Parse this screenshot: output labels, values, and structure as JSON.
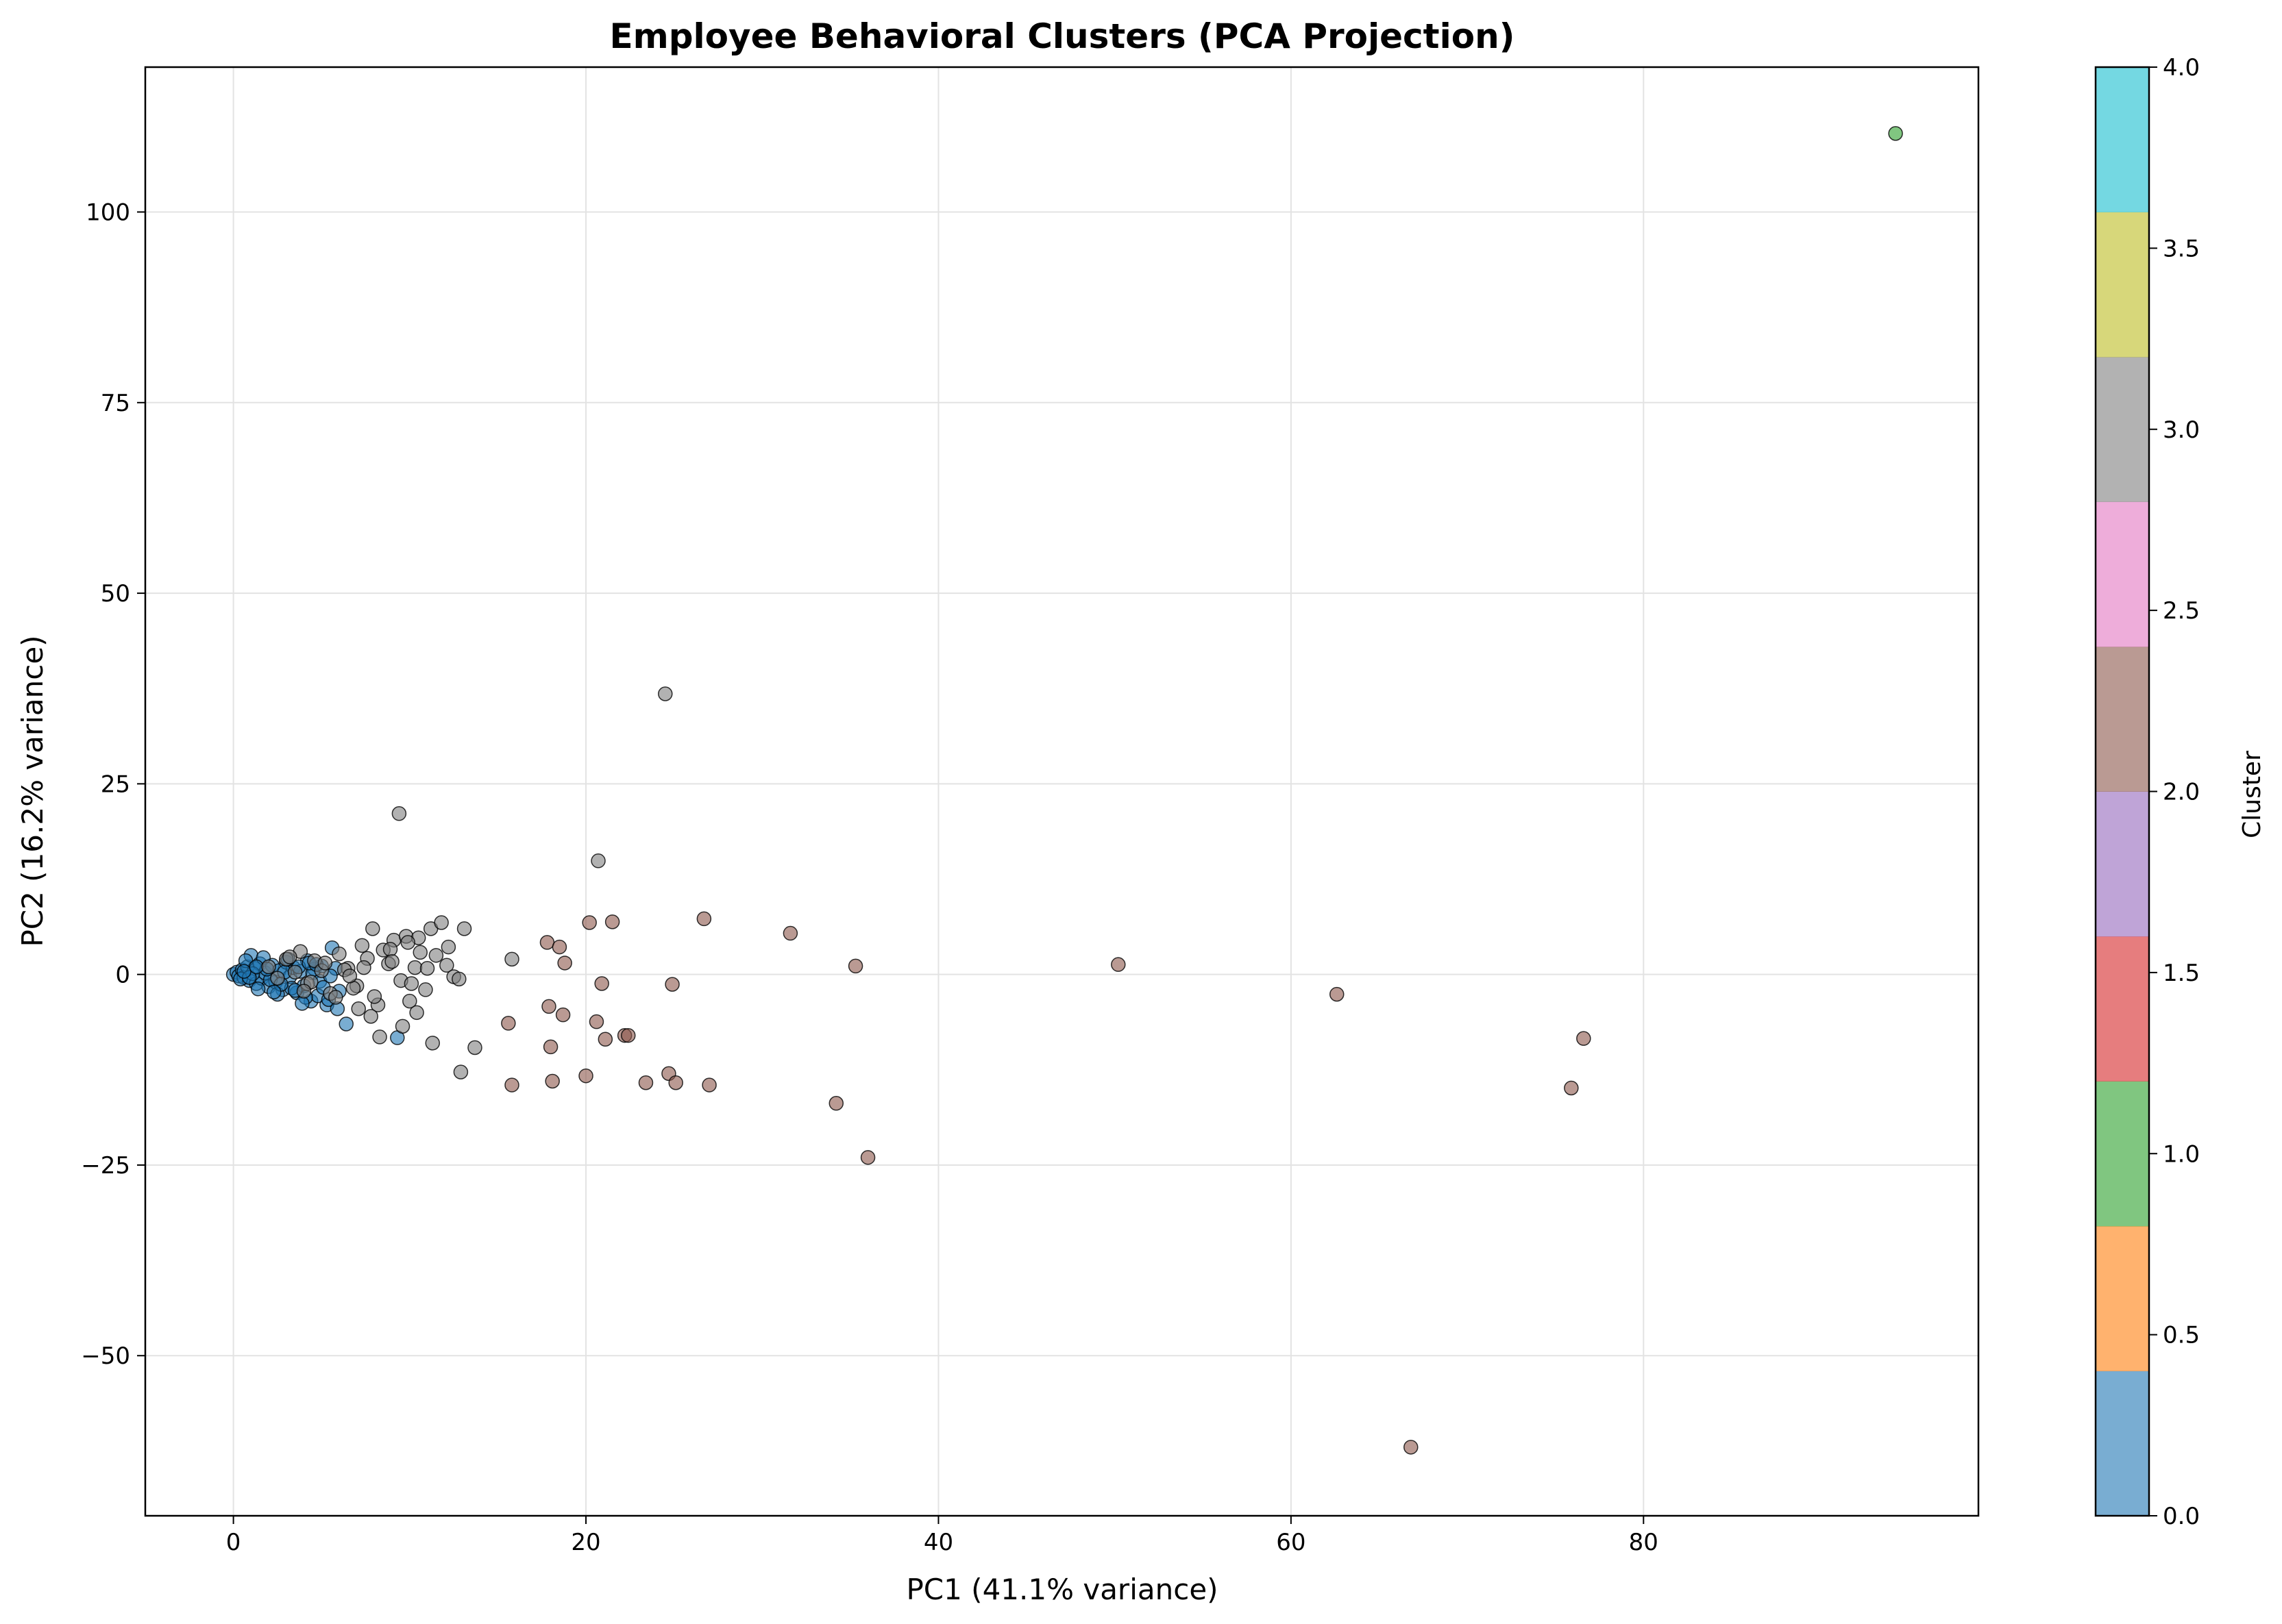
{
  "chart_data": {
    "type": "scatter",
    "title": "Employee Behavioral Clusters (PCA Projection)",
    "xlabel": "PC1 (41.1% variance)",
    "ylabel": "PC2 (16.2% variance)",
    "xlim": [
      -5,
      99
    ],
    "ylim": [
      -71,
      119
    ],
    "xticks": [
      0,
      20,
      40,
      60,
      80
    ],
    "yticks": [
      -50,
      -25,
      0,
      25,
      50,
      75,
      100
    ],
    "ytick_labels": [
      "−50",
      "−25",
      "0",
      "25",
      "50",
      "75",
      "100"
    ],
    "grid": true,
    "colorbar": {
      "label": "Cluster",
      "range": [
        0,
        4
      ],
      "ticks": [
        "0.0",
        "0.5",
        "1.0",
        "1.5",
        "2.0",
        "2.5",
        "3.0",
        "3.5",
        "4.0"
      ],
      "colormap": [
        "#1f77b4",
        "#ff7f0e",
        "#2ca02c",
        "#d62728",
        "#9467bd",
        "#8c564b",
        "#e377c2",
        "#7f7f7f",
        "#bcbd22",
        "#17becf"
      ]
    },
    "cluster_colors": {
      "0": "#1f77b4",
      "1": "#2ca02c",
      "2": "#8c564b",
      "3": "#7f7f7f"
    },
    "series": [
      {
        "cluster": 0,
        "x": [
          0.0,
          0.2,
          0.3,
          0.5,
          0.6,
          0.8,
          0.9,
          1.0,
          1.2,
          1.3,
          1.5,
          1.6,
          1.8,
          2.0,
          2.2,
          2.4,
          2.6,
          2.8,
          3.0,
          3.2,
          3.4,
          3.6,
          3.8,
          4.0,
          4.2,
          4.4,
          4.6,
          4.8,
          5.0,
          5.3,
          5.6,
          6.0,
          6.4,
          0.4,
          0.7,
          1.1,
          1.4,
          1.7,
          2.1,
          2.5,
          2.9,
          3.3,
          3.7,
          4.1,
          4.5,
          4.9,
          5.4,
          5.8,
          0.9,
          1.9,
          2.7,
          3.5,
          4.3,
          5.1,
          5.9,
          9.3,
          0.6,
          1.3,
          2.3,
          3.1,
          3.9,
          4.7,
          5.5
        ],
        "y": [
          0.0,
          0.3,
          -0.2,
          0.6,
          -0.4,
          1.0,
          -0.8,
          2.5,
          0.8,
          -1.2,
          1.4,
          -0.5,
          0.2,
          -1.6,
          1.2,
          -1.0,
          0.5,
          -2.0,
          1.6,
          -0.3,
          0.9,
          -2.4,
          0.4,
          -1.5,
          1.8,
          -3.5,
          0.7,
          -2.8,
          1.1,
          -4.0,
          3.5,
          -2.2,
          -6.5,
          -0.6,
          1.8,
          0.1,
          -1.9,
          2.2,
          -0.7,
          -2.6,
          0.3,
          -1.8,
          1.0,
          -3.0,
          0.2,
          -0.9,
          -3.3,
          0.8,
          -0.4,
          0.7,
          -1.3,
          -2.1,
          1.5,
          -1.7,
          -4.5,
          -8.3,
          0.4,
          1.0,
          -2.3,
          2.0,
          -3.8,
          1.3,
          -0.2
        ]
      },
      {
        "cluster": 1,
        "x": [
          94.3
        ],
        "y": [
          110.3
        ]
      },
      {
        "cluster": 2,
        "x": [
          15.6,
          15.8,
          17.8,
          17.9,
          18.0,
          18.1,
          18.5,
          18.7,
          18.8,
          20.0,
          20.2,
          20.6,
          20.9,
          21.1,
          21.5,
          22.2,
          22.4,
          23.4,
          24.7,
          24.9,
          25.1,
          26.7,
          27.0,
          31.6,
          34.2,
          35.3,
          36.0,
          50.2,
          62.6,
          66.8,
          75.9,
          76.6
        ],
        "y": [
          -6.4,
          -14.5,
          4.2,
          -4.2,
          -9.5,
          -14.0,
          3.6,
          -5.3,
          1.5,
          -13.3,
          6.8,
          -6.2,
          -1.2,
          -8.5,
          6.9,
          -8.0,
          -8.0,
          -14.2,
          -13.0,
          -1.3,
          -14.2,
          7.3,
          -14.5,
          5.4,
          -16.9,
          1.1,
          -24.0,
          1.3,
          -2.6,
          -62.0,
          -14.9,
          -8.4
        ]
      },
      {
        "cluster": 3,
        "x": [
          24.5,
          9.4,
          20.7,
          2.0,
          2.5,
          3.0,
          3.5,
          3.8,
          4.2,
          4.6,
          5.0,
          5.5,
          6.0,
          6.5,
          7.0,
          7.3,
          7.6,
          7.9,
          8.2,
          8.5,
          8.8,
          9.1,
          9.5,
          9.8,
          10.0,
          10.3,
          10.6,
          10.9,
          11.2,
          11.5,
          11.8,
          12.1,
          12.5,
          12.8,
          13.1,
          13.7,
          15.8,
          7.8,
          8.9,
          9.6,
          10.5,
          11.3,
          12.2,
          6.8,
          7.1,
          5.2,
          5.8,
          4.4,
          6.3,
          8.0,
          9.0,
          10.1,
          11.0,
          3.2,
          4.0,
          6.6,
          7.4,
          12.9,
          10.4,
          8.3,
          9.9
        ],
        "y": [
          36.8,
          21.1,
          14.9,
          1.0,
          -0.5,
          2.0,
          0.3,
          3.0,
          -1.2,
          1.8,
          0.5,
          -2.5,
          2.7,
          0.8,
          -1.5,
          3.8,
          2.1,
          6.0,
          -4.0,
          3.2,
          1.4,
          4.5,
          -0.8,
          5.0,
          -3.5,
          0.9,
          2.9,
          -2.0,
          6.0,
          2.5,
          6.8,
          1.2,
          -0.3,
          -0.6,
          6.0,
          -9.6,
          2.0,
          -5.5,
          3.3,
          -6.8,
          4.8,
          -9.0,
          3.6,
          -1.8,
          -4.5,
          1.5,
          -3.0,
          -1.0,
          0.6,
          -2.9,
          1.7,
          -1.2,
          0.8,
          2.3,
          -2.2,
          -0.2,
          0.9,
          -12.8,
          -5.0,
          -8.2,
          4.2
        ]
      }
    ]
  }
}
